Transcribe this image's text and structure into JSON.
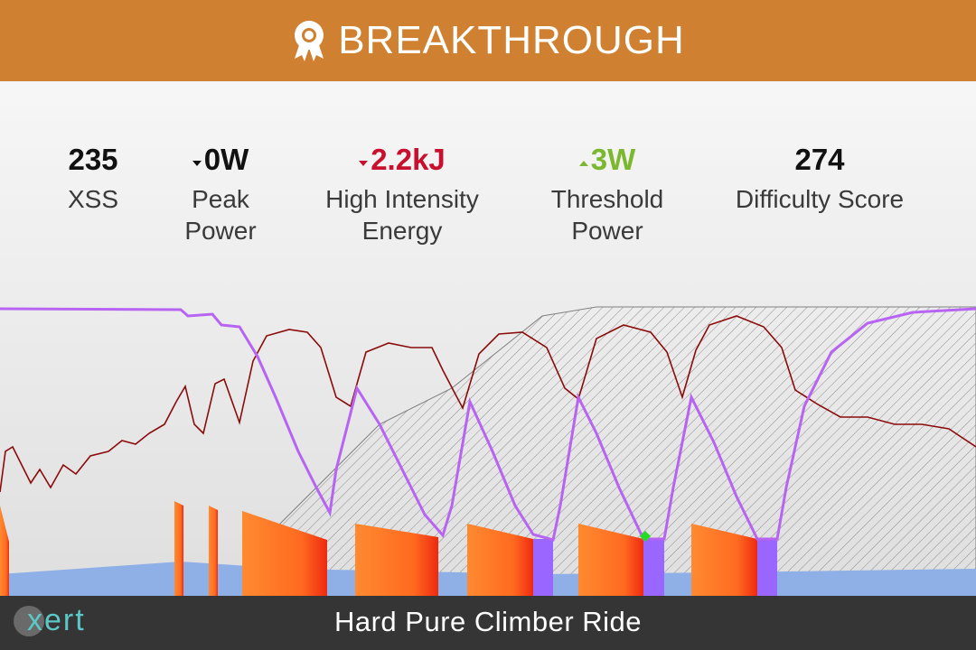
{
  "header": {
    "title": "BREAKTHROUGH"
  },
  "stats": [
    {
      "value": "235",
      "label": "XSS",
      "color": "#111111"
    },
    {
      "value": "0W",
      "label": "Peak Power",
      "color": "#111111",
      "trend": "down"
    },
    {
      "value": "2.2kJ",
      "label": "High Intensity Energy",
      "color": "#c8102e",
      "trend": "down"
    },
    {
      "value": "3W",
      "label": "Threshold Power",
      "color": "#7cb82f",
      "trend": "up"
    },
    {
      "value": "274",
      "label": "Difficulty Score",
      "color": "#111111"
    }
  ],
  "logo": "xert",
  "footer": {
    "title": "Hard Pure Climber Ride"
  }
}
